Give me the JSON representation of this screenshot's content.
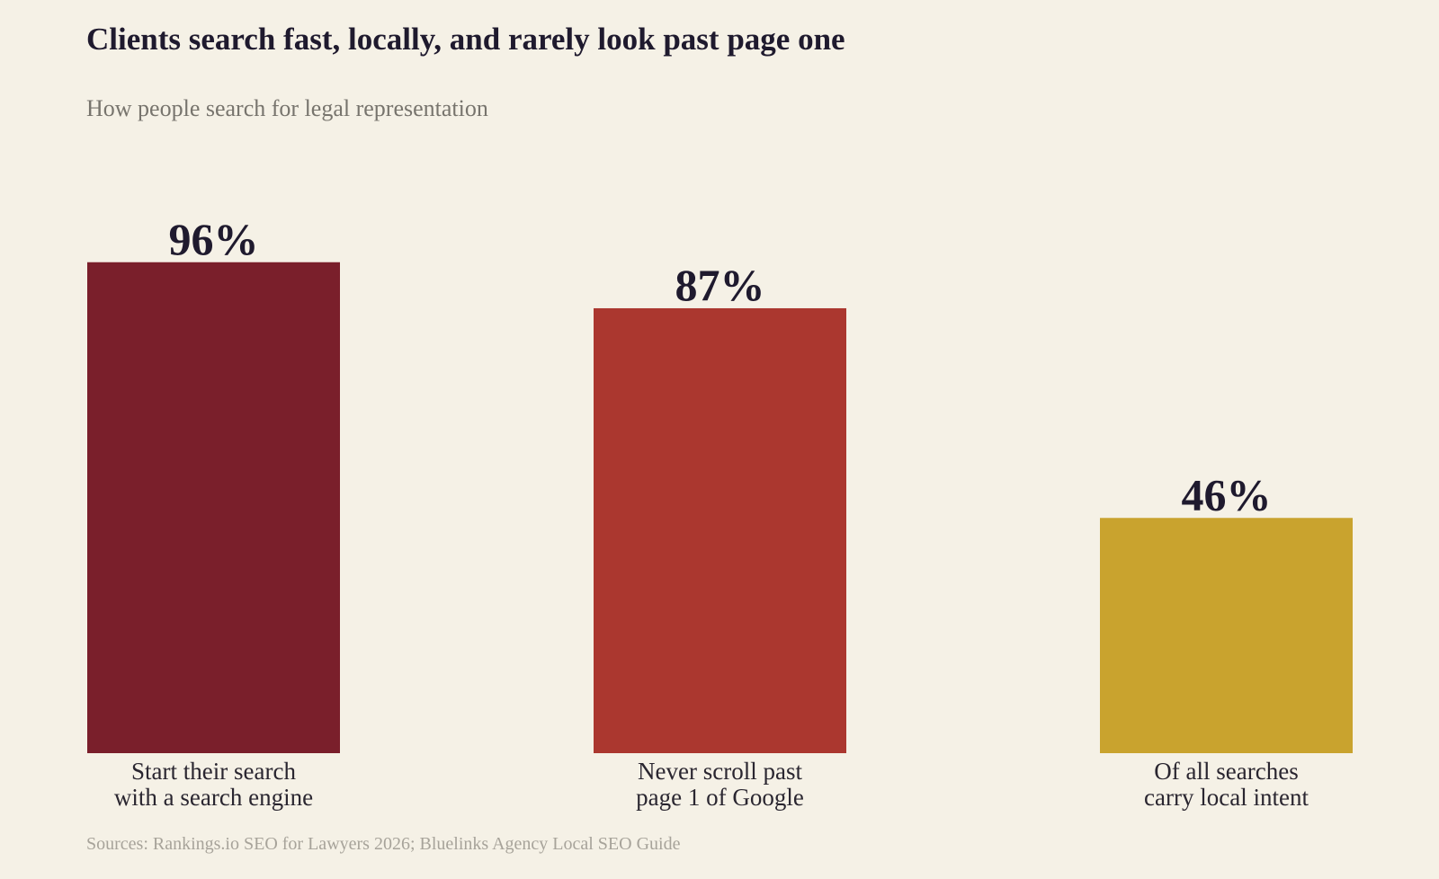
{
  "header": {
    "title": "Clients search fast, locally, and rarely look past page one",
    "subtitle": "How people search for legal representation"
  },
  "footer": {
    "source": "Sources: Rankings.io SEO for Lawyers 2026; Bluelinks Agency Local SEO Guide"
  },
  "chart_data": {
    "type": "bar",
    "title": "Clients search fast, locally, and rarely look past page one",
    "subtitle": "How people search for legal representation",
    "categories": [
      [
        "Start their search",
        "with a search engine"
      ],
      [
        "Never scroll past",
        "page 1 of Google"
      ],
      [
        "Of all searches",
        "carry local intent"
      ]
    ],
    "values": [
      96,
      87,
      46
    ],
    "value_labels": [
      "96%",
      "87%",
      "46%"
    ],
    "colors": [
      "#7a1f2b",
      "#ab372f",
      "#c9a32e"
    ],
    "ylim": [
      0,
      100
    ],
    "grid": false,
    "xlabel": "",
    "ylabel": ""
  }
}
